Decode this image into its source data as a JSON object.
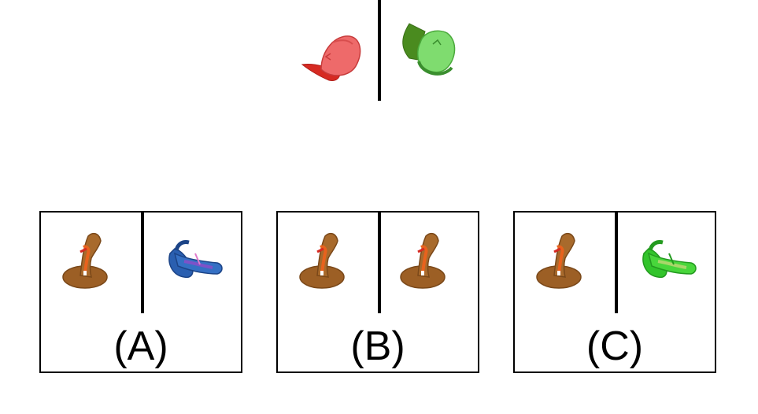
{
  "prompt": {
    "left_icon": "red-cap",
    "right_icon": "green-cap"
  },
  "options": [
    {
      "label": "(A)",
      "left_icon": "brown-toy-figure",
      "right_icon": "blue-toy-figure"
    },
    {
      "label": "(B)",
      "left_icon": "brown-toy-figure",
      "right_icon": "brown-toy-figure"
    },
    {
      "label": "(C)",
      "left_icon": "brown-toy-figure",
      "right_icon": "green-toy-figure"
    }
  ],
  "colors": {
    "cap_red": "#e8453f",
    "cap_green": "#58b33d",
    "toy_brown": "#a86a2c",
    "toy_blue": "#2a5fb0",
    "toy_green": "#3ed12f"
  }
}
